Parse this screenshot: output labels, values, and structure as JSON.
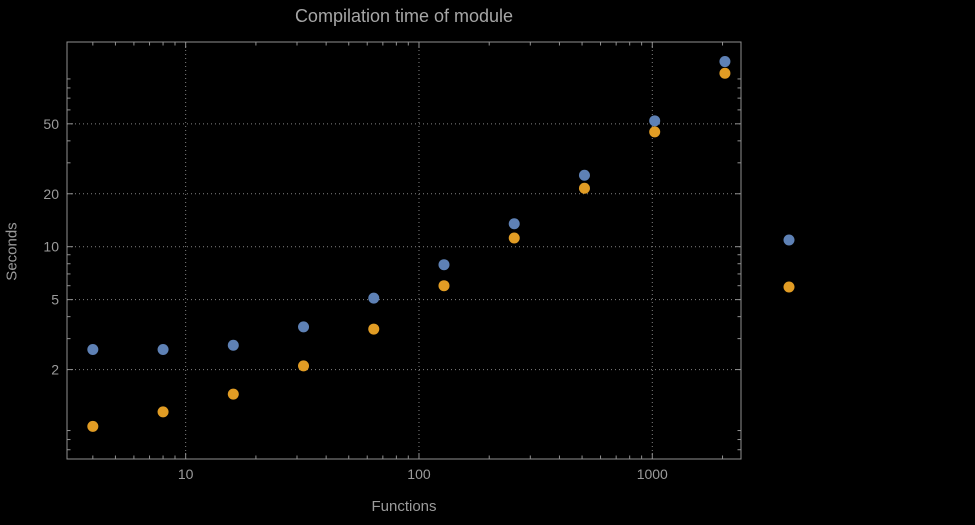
{
  "colors": {
    "background": "#000000",
    "frame": "#919191",
    "grid": "#828282",
    "text": "#9b9b9b",
    "series_blue": "#5e81b5",
    "series_orange": "#e19c24"
  },
  "chart_data": {
    "type": "scatter",
    "title": "Compilation time of module",
    "xlabel": "Functions",
    "ylabel": "Seconds",
    "x_scale": "log",
    "y_scale": "log",
    "xlim": [
      3.1,
      2400
    ],
    "ylim": [
      0.62,
      146
    ],
    "grid": "dotted, at labeled ticks only",
    "x": [
      4,
      8,
      16,
      32,
      64,
      128,
      256,
      512,
      1024,
      2048
    ],
    "series": [
      {
        "name": "series-blue",
        "color": "#5e81b5",
        "values": [
          2.6,
          2.6,
          2.75,
          3.5,
          5.1,
          7.9,
          13.5,
          25.5,
          52,
          113
        ]
      },
      {
        "name": "series-orange",
        "color": "#e19c24",
        "values": [
          0.95,
          1.15,
          1.45,
          2.1,
          3.4,
          6.0,
          11.2,
          21.5,
          45,
          97
        ]
      }
    ],
    "x_ticks": [
      {
        "value": 10,
        "label": "10"
      },
      {
        "value": 100,
        "label": "100"
      },
      {
        "value": 1000,
        "label": "1000"
      }
    ],
    "y_ticks": [
      {
        "value": 2,
        "label": "2"
      },
      {
        "value": 5,
        "label": "5"
      },
      {
        "value": 10,
        "label": "10"
      },
      {
        "value": 20,
        "label": "20"
      },
      {
        "value": 50,
        "label": "50"
      }
    ],
    "legend": {
      "position": "outside-right",
      "labels_visible": false,
      "markers": [
        {
          "series": "series-blue",
          "color": "#5e81b5"
        },
        {
          "series": "series-orange",
          "color": "#e19c24"
        }
      ]
    }
  }
}
